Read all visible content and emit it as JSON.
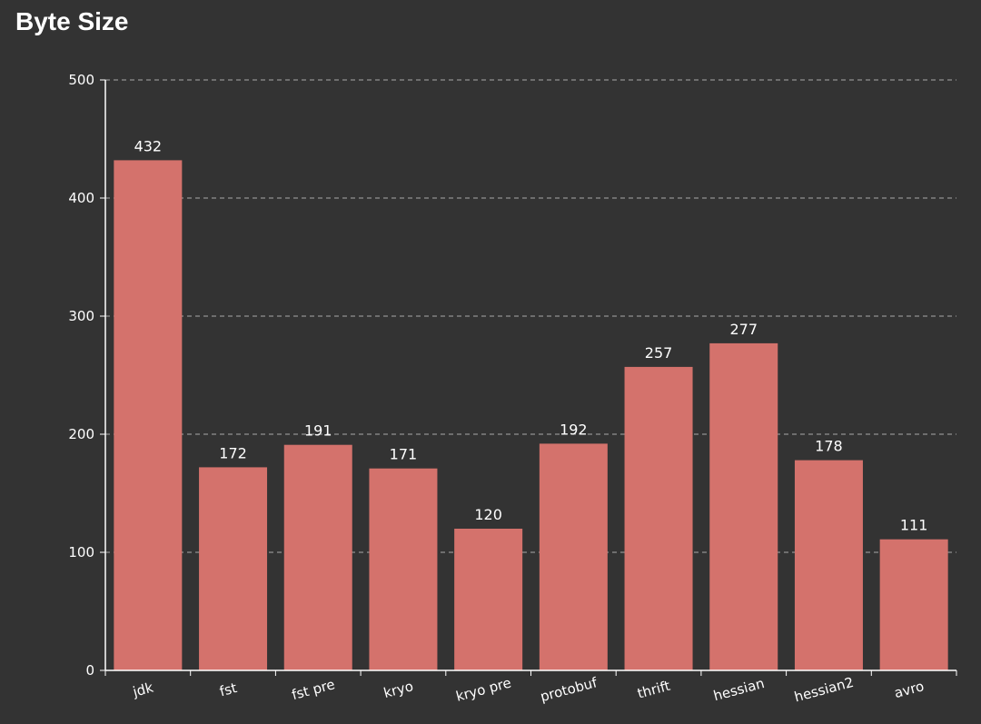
{
  "chart_data": {
    "type": "bar",
    "title": "Byte Size",
    "xlabel": "",
    "ylabel": "",
    "categories": [
      "jdk",
      "fst",
      "fst pre",
      "kryo",
      "kryo pre",
      "protobuf",
      "thrift",
      "hessian",
      "hessian2",
      "avro"
    ],
    "values": [
      432,
      172,
      191,
      171,
      120,
      192,
      257,
      277,
      178,
      111
    ],
    "ylim": [
      0,
      500
    ],
    "yticks": [
      0,
      100,
      200,
      300,
      400,
      500
    ],
    "grid": true,
    "legend": "none"
  },
  "colors": {
    "background": "#333333",
    "bar": "#d4726c",
    "axis": "#ffffff",
    "grid": "#aaaaaa",
    "text": "#ffffff"
  }
}
